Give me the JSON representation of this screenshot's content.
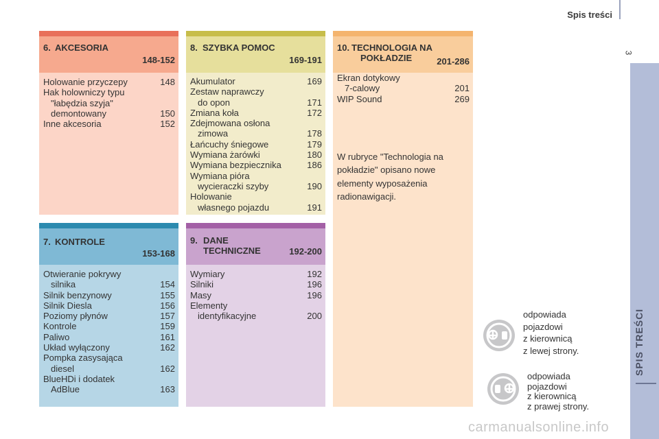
{
  "header": {
    "title": "Spis treści",
    "page_number": "3"
  },
  "side_tab": {
    "label": "SPIS TREŚCI"
  },
  "cards": {
    "akcesoria": {
      "num": "6.",
      "title": "AKCESORIA",
      "pages": "148-152",
      "items": [
        {
          "t": "Holowanie przyczepy",
          "p": "148"
        },
        {
          "t": "Hak holowniczy typu",
          "p": ""
        },
        {
          "t": "\"łabędzia szyja\"",
          "p": ""
        },
        {
          "t": "demontowany",
          "p": "150"
        },
        {
          "t": "Inne akcesoria",
          "p": "152"
        }
      ]
    },
    "szybka": {
      "num": "8.",
      "title": "SZYBKA POMOC",
      "pages": "169-191",
      "items": [
        {
          "t": "Akumulator",
          "p": "169"
        },
        {
          "t": "Zestaw naprawczy",
          "p": ""
        },
        {
          "t": "do opon",
          "p": "171"
        },
        {
          "t": "Zmiana koła",
          "p": "172"
        },
        {
          "t": "Zdejmowana osłona",
          "p": ""
        },
        {
          "t": "zimowa",
          "p": "178"
        },
        {
          "t": "Łańcuchy śniegowe",
          "p": "179"
        },
        {
          "t": "Wymiana żarówki",
          "p": "180"
        },
        {
          "t": "Wymiana bezpiecznika",
          "p": "186"
        },
        {
          "t": "Wymiana pióra",
          "p": ""
        },
        {
          "t": "wycieraczki szyby",
          "p": "190"
        },
        {
          "t": "Holowanie",
          "p": ""
        },
        {
          "t": "własnego pojazdu",
          "p": "191"
        }
      ]
    },
    "technologia": {
      "num": "10.",
      "title1": "TECHNOLOGIA NA",
      "title2": "POKŁADZIE",
      "pages": "201-286",
      "items": [
        {
          "t": "Ekran dotykowy",
          "p": ""
        },
        {
          "t": "7-calowy",
          "p": "201"
        },
        {
          "t": "WIP Sound",
          "p": "269"
        }
      ],
      "note": "W rubryce \"Technologia na pokładzie\" opisano nowe elementy wyposażenia radionawigacji."
    },
    "kontrole": {
      "num": "7.",
      "title": "KONTROLE",
      "pages": "153-168",
      "items": [
        {
          "t": "Otwieranie pokrywy",
          "p": ""
        },
        {
          "t": "silnika",
          "p": "154"
        },
        {
          "t": "Silnik benzynowy",
          "p": "155"
        },
        {
          "t": "Silnik Diesla",
          "p": "156"
        },
        {
          "t": "Poziomy płynów",
          "p": "157"
        },
        {
          "t": "Kontrole",
          "p": "159"
        },
        {
          "t": "Paliwo",
          "p": "161"
        },
        {
          "t": "Układ wyłączony",
          "p": "162"
        },
        {
          "t": "Pompka zasysająca",
          "p": ""
        },
        {
          "t": "diesel",
          "p": "162"
        },
        {
          "t": "BlueHDi i dodatek",
          "p": ""
        },
        {
          "t": "AdBlue",
          "p": "163"
        }
      ]
    },
    "dane": {
      "num": "9.",
      "title1": "DANE",
      "title2": "TECHNICZNE",
      "pages": "192-200",
      "items": [
        {
          "t": "Wymiary",
          "p": "192"
        },
        {
          "t": "Silniki",
          "p": "196"
        },
        {
          "t": "Masy",
          "p": "196"
        },
        {
          "t": "Elementy",
          "p": ""
        },
        {
          "t": "identyfikacyjne",
          "p": "200"
        }
      ]
    }
  },
  "legend": {
    "lhd": {
      "l1": "odpowiada",
      "l2": "pojazdowi",
      "l3": "z kierownicą",
      "l4": "z lewej strony."
    },
    "rhd": {
      "l1": "odpowiada",
      "l2": "pojazdowi",
      "l3": "z kierownicą",
      "l4": "z prawej strony."
    }
  },
  "watermark": "carmanualsonline.info",
  "colors": {
    "akcesoria_bar": "#e8705a",
    "akcesoria_head": "#f6a98e",
    "akcesoria_body": "#fcd5c7",
    "szybka_bar": "#c7bd4a",
    "szybka_head": "#e6df9c",
    "szybka_body": "#f2eccb",
    "tech_bar": "#f4b46e",
    "tech_head": "#f9cd9c",
    "tech_body": "#fde3cb",
    "kontrole_bar": "#2c8aaf",
    "kontrole_head": "#7fb9d5",
    "kontrole_body": "#b6d6e6",
    "dane_bar": "#a360a6",
    "dane_head": "#c9a3cd",
    "dane_body": "#e3d2e6"
  }
}
